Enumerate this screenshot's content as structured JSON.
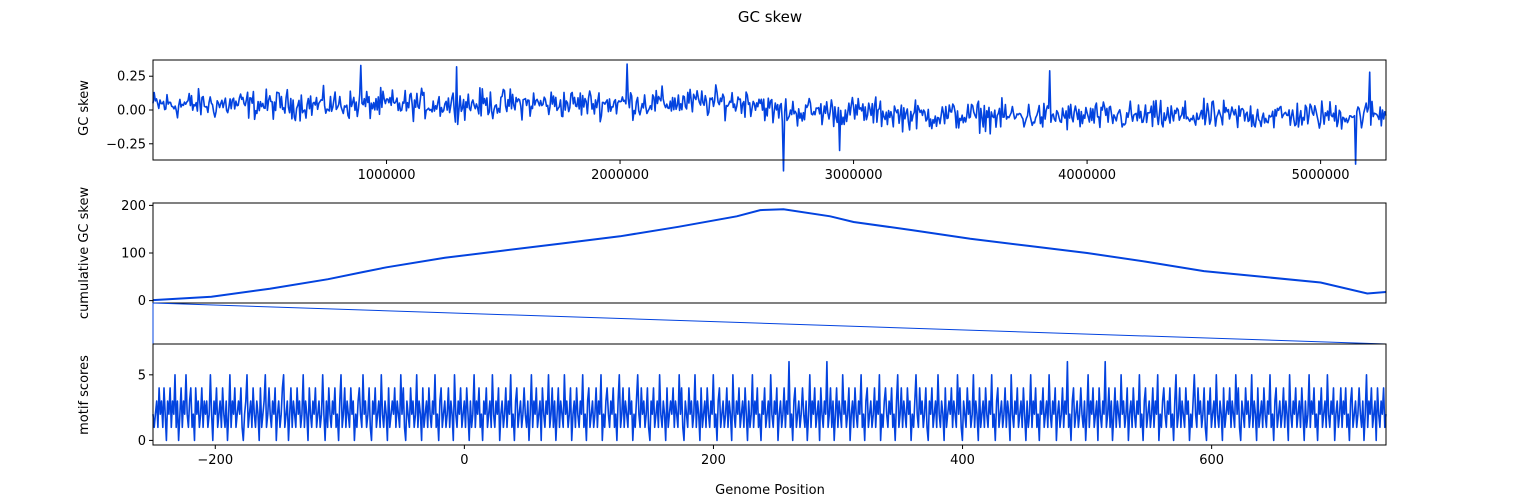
{
  "figure": {
    "title": "GC skew",
    "xlabel": "Genome Position",
    "line_color": "#0343df"
  },
  "chart_data": [
    {
      "type": "line",
      "name": "gc-skew-panel",
      "ylabel": "GC skew",
      "xlim": [
        0,
        5280000
      ],
      "ylim": [
        -0.37,
        0.37
      ],
      "xticks": [
        1000000,
        2000000,
        3000000,
        4000000,
        5000000
      ],
      "xtick_labels": [
        "1000000",
        "2000000",
        "3000000",
        "4000000",
        "5000000"
      ],
      "yticks": [
        -0.25,
        0.0,
        0.25
      ],
      "ytick_labels": [
        "−0.25",
        "0.00",
        "0.25"
      ],
      "series_note_values": {
        "x_step": 5000,
        "mean_profile": [
          [
            0,
            0.04
          ],
          [
            1000000,
            0.04
          ],
          [
            2000000,
            0.05
          ],
          [
            2600000,
            0.06
          ],
          [
            2650000,
            -0.01
          ],
          [
            3000000,
            -0.01
          ],
          [
            3250000,
            -0.04
          ],
          [
            4000000,
            -0.05
          ],
          [
            5000000,
            -0.04
          ],
          [
            5280000,
            -0.03
          ]
        ],
        "amplitude": 0.075,
        "extremes": [
          [
            890000,
            0.33
          ],
          [
            1300000,
            0.32
          ],
          [
            2030000,
            0.34
          ],
          [
            2700000,
            -0.45
          ],
          [
            2940000,
            -0.3
          ],
          [
            3840000,
            0.29
          ],
          [
            5210000,
            0.28
          ],
          [
            5150000,
            -0.4
          ]
        ]
      }
    },
    {
      "type": "line",
      "name": "cumulative-gc-skew-panel",
      "ylabel": "cumulative GC skew",
      "xlim": [
        0,
        5280000
      ],
      "ylim": [
        -5,
        205
      ],
      "yticks": [
        0,
        100,
        200
      ],
      "ytick_labels": [
        "0",
        "100",
        "200"
      ],
      "x": [
        0,
        250000,
        500000,
        750000,
        900000,
        1000000,
        1250000,
        1500000,
        1750000,
        2000000,
        2250000,
        2500000,
        2600000,
        2700000,
        2900000,
        3000000,
        3250000,
        3500000,
        3750000,
        4000000,
        4250000,
        4500000,
        4750000,
        5000000,
        5200000,
        5280000
      ],
      "y": [
        1,
        8,
        25,
        45,
        60,
        70,
        90,
        105,
        120,
        135,
        155,
        177,
        190,
        192,
        177,
        165,
        148,
        130,
        115,
        100,
        82,
        62,
        50,
        38,
        15,
        18
      ]
    },
    {
      "type": "line",
      "name": "motif-scores-panel",
      "ylabel": "motif scores",
      "xlim": [
        -250,
        740
      ],
      "ylim": [
        -0.35,
        7.35
      ],
      "xticks": [
        -200,
        0,
        200,
        400,
        600
      ],
      "xtick_labels": [
        "−200",
        "0",
        "200",
        "400",
        "600"
      ],
      "yticks": [
        0,
        5
      ],
      "ytick_labels": [
        "0",
        "5"
      ],
      "x_start": -250,
      "y": [
        2,
        1,
        2,
        3,
        1,
        4,
        2,
        3,
        1,
        4,
        2,
        0,
        3,
        2,
        4,
        1,
        3,
        2,
        5,
        1,
        3,
        0,
        2,
        4,
        1,
        3,
        2,
        5,
        2,
        1,
        3,
        4,
        1,
        2,
        0,
        4,
        2,
        3,
        1,
        2,
        4,
        1,
        3,
        2,
        3,
        1,
        2,
        5,
        2,
        0,
        3,
        2,
        4,
        1,
        2,
        3,
        1,
        4,
        2,
        1,
        3,
        0,
        2,
        5,
        1,
        3,
        2,
        4,
        1,
        2,
        3,
        2,
        4,
        1,
        0,
        2,
        3,
        5,
        1,
        2,
        3,
        1,
        4,
        2,
        1,
        3,
        2,
        0,
        4,
        1,
        2,
        3,
        5,
        1,
        2,
        4,
        2,
        1,
        3,
        2,
        4,
        0,
        2,
        3,
        1,
        2,
        4,
        5,
        1,
        2,
        3,
        0,
        2,
        4,
        1,
        3,
        2,
        1,
        4,
        2,
        3,
        1,
        2,
        5,
        1,
        3,
        2,
        0,
        4,
        2,
        1,
        3,
        2,
        4,
        1,
        2,
        3,
        1,
        2,
        5,
        2,
        0,
        3,
        1,
        4,
        2,
        1,
        3,
        2,
        4,
        1,
        2,
        0,
        3,
        5,
        1,
        2,
        4,
        1,
        3,
        2,
        1,
        4,
        2,
        3,
        0,
        2,
        1,
        3,
        4,
        2,
        1,
        5,
        2,
        3,
        1,
        2,
        4,
        1,
        0,
        3,
        2,
        4,
        1,
        2,
        3,
        1,
        5,
        2,
        1,
        3,
        2,
        0,
        4,
        1,
        2,
        3,
        2,
        4,
        1,
        3,
        2,
        1,
        5,
        2,
        4,
        1,
        0,
        3,
        2,
        1,
        4,
        2,
        3,
        1,
        2,
        5,
        1,
        3,
        2,
        0,
        4,
        1,
        2,
        3,
        1,
        4,
        2,
        1,
        3,
        2,
        5,
        1,
        2,
        0,
        3,
        4,
        1,
        2,
        3,
        1,
        2,
        4,
        1,
        3,
        2,
        0,
        5,
        2,
        1,
        3,
        2,
        4,
        1,
        2,
        3,
        1,
        4,
        2,
        0,
        3,
        1,
        2,
        5,
        1,
        3,
        2,
        4,
        1,
        2,
        0,
        3,
        2,
        4,
        1,
        2,
        3,
        1,
        5,
        2,
        1,
        3,
        2,
        4,
        0,
        2,
        3,
        1,
        2,
        4,
        1,
        3,
        2,
        5,
        1,
        2,
        0,
        3,
        4,
        1,
        2,
        3,
        1,
        2,
        4,
        2,
        1,
        3,
        0,
        2,
        5,
        1,
        3,
        2,
        4,
        1,
        2,
        3,
        0,
        4,
        2,
        1,
        3,
        2,
        5,
        1,
        2,
        4,
        1,
        3,
        0,
        2,
        4,
        1,
        3,
        2,
        1,
        5,
        2,
        3,
        1,
        2,
        4,
        0,
        2,
        3,
        1,
        4,
        2,
        1,
        3,
        2,
        5,
        1,
        2,
        0,
        3,
        4,
        1,
        2,
        3,
        1,
        2,
        4,
        1,
        3,
        2,
        5,
        0,
        2,
        1,
        3,
        4,
        2,
        1,
        3,
        2,
        4,
        1,
        2,
        0,
        3,
        5,
        1,
        2,
        4,
        1,
        3,
        2,
        1,
        4,
        2,
        3,
        0,
        2,
        1,
        3,
        5,
        2,
        1,
        4,
        2,
        3,
        1,
        2,
        4,
        1,
        0,
        3,
        2,
        4,
        1,
        2,
        3,
        1,
        5,
        2,
        1,
        3,
        2,
        0,
        4,
        1,
        2,
        3,
        2,
        4,
        1,
        3,
        2,
        1,
        5,
        2,
        4,
        1,
        0,
        3,
        2,
        1,
        4,
        2,
        3,
        1,
        2,
        5,
        1,
        3,
        2,
        0,
        4,
        1,
        2,
        3,
        1,
        4,
        2,
        1,
        3,
        2,
        5,
        1,
        2,
        0,
        3,
        4,
        1,
        2,
        3,
        1,
        2,
        4,
        1,
        3,
        2,
        0,
        5,
        2,
        1,
        3,
        2,
        4,
        1,
        2,
        3,
        1,
        4,
        2,
        0,
        3,
        1,
        2,
        5,
        1,
        3,
        2,
        4,
        1,
        2,
        0,
        3,
        2,
        4,
        1,
        2,
        3,
        1,
        5,
        2,
        1,
        3,
        2,
        4,
        0,
        2,
        3,
        1,
        2,
        4,
        1,
        3,
        2,
        6,
        1,
        2,
        0,
        3,
        4,
        1,
        2,
        3,
        1,
        2,
        4,
        2,
        1,
        3,
        0,
        2,
        5,
        1,
        3,
        2,
        4,
        1,
        2,
        3,
        0,
        4,
        2,
        1,
        3,
        2,
        6,
        1,
        2,
        4,
        1,
        3,
        0,
        2,
        4,
        1,
        3,
        2,
        1,
        5,
        2,
        3,
        1,
        2,
        4,
        0,
        2,
        3,
        1,
        4,
        2,
        1,
        3,
        2,
        5,
        1,
        2,
        0,
        3,
        4,
        1,
        2,
        3,
        1,
        2,
        4,
        1,
        3,
        2,
        5,
        0,
        2,
        1,
        3,
        4,
        2,
        1,
        3,
        2,
        4,
        1,
        2,
        0,
        3,
        5,
        1,
        2,
        4,
        1,
        3,
        2,
        1,
        4,
        2,
        3,
        0,
        2,
        1,
        3,
        5,
        2,
        1,
        4,
        2,
        3,
        1,
        2,
        4,
        1,
        0,
        3,
        2,
        4,
        1,
        2,
        3,
        1,
        5,
        2,
        1,
        3,
        2,
        0,
        4,
        1,
        2,
        3,
        2,
        4,
        1,
        3,
        2,
        1,
        5,
        2,
        4,
        1,
        0,
        3,
        2,
        1,
        4,
        2,
        3,
        1,
        2,
        5,
        1,
        3,
        2,
        0,
        4,
        1,
        2,
        3,
        1,
        4,
        2,
        1,
        3,
        2,
        5,
        1,
        2,
        0,
        3,
        4,
        1,
        2,
        3,
        1,
        2,
        4,
        1,
        3,
        2,
        0,
        5,
        2,
        1,
        3,
        2,
        4,
        1,
        2,
        3,
        1,
        4,
        2,
        0,
        3,
        1,
        2,
        5,
        1,
        3,
        2,
        4,
        1,
        2,
        0,
        3,
        2,
        4,
        1,
        2,
        3,
        1,
        5,
        2,
        1,
        3,
        2,
        4,
        0,
        2,
        3,
        1,
        2,
        4,
        1,
        3,
        2,
        6,
        1,
        2,
        0,
        3,
        4,
        1,
        2,
        3,
        1,
        2,
        4,
        2,
        1,
        3,
        0,
        2,
        5,
        1,
        3,
        2,
        4,
        1,
        2,
        3,
        0,
        4,
        2,
        1,
        3,
        2,
        6,
        1,
        2,
        4,
        1,
        3,
        0,
        2,
        4,
        1,
        3,
        2,
        1,
        5,
        2,
        3,
        1,
        2,
        4,
        0,
        2,
        3,
        1,
        4,
        2,
        1,
        3,
        2,
        5,
        1,
        2,
        0,
        3,
        4,
        1,
        2,
        3,
        1,
        2,
        4,
        1,
        3,
        2,
        5,
        0,
        2,
        1,
        3,
        4,
        2,
        1,
        3,
        2,
        4,
        1,
        2,
        0,
        3,
        5,
        1,
        2,
        4,
        1,
        3,
        2,
        1,
        4,
        2,
        3,
        0,
        2,
        1,
        3,
        5,
        2,
        1,
        4,
        2,
        3,
        1,
        2,
        4,
        1,
        0,
        3,
        2,
        4,
        1,
        2,
        3,
        1,
        5,
        2,
        1,
        3,
        2,
        0,
        4,
        1,
        2,
        3,
        2,
        4,
        1,
        3,
        2,
        1,
        5,
        2,
        4,
        1,
        0,
        3,
        2,
        1,
        4,
        2,
        3,
        1,
        2,
        5,
        1,
        3,
        2,
        0,
        4,
        1,
        2,
        3,
        1,
        4,
        2,
        1,
        3,
        2,
        5,
        1,
        2,
        0,
        3,
        4,
        1,
        2,
        3,
        1,
        2,
        4,
        1,
        3,
        2,
        0,
        5,
        2,
        1,
        3,
        2,
        4,
        1,
        2,
        3,
        1,
        4,
        2,
        0,
        3,
        1,
        2,
        5,
        1,
        3,
        2,
        4,
        1,
        2,
        0,
        3,
        2,
        4,
        1,
        2,
        3,
        1,
        5,
        2,
        1,
        3,
        2,
        4,
        0,
        2,
        3,
        1,
        2,
        4,
        1,
        3,
        2,
        4,
        1,
        2,
        0,
        3,
        4,
        1,
        2,
        3,
        1,
        2,
        4,
        2,
        1,
        3,
        0,
        2,
        5,
        1,
        3,
        2,
        4,
        1,
        2,
        3,
        0,
        4,
        2,
        1,
        3,
        2,
        4,
        1,
        2
      ]
    }
  ]
}
